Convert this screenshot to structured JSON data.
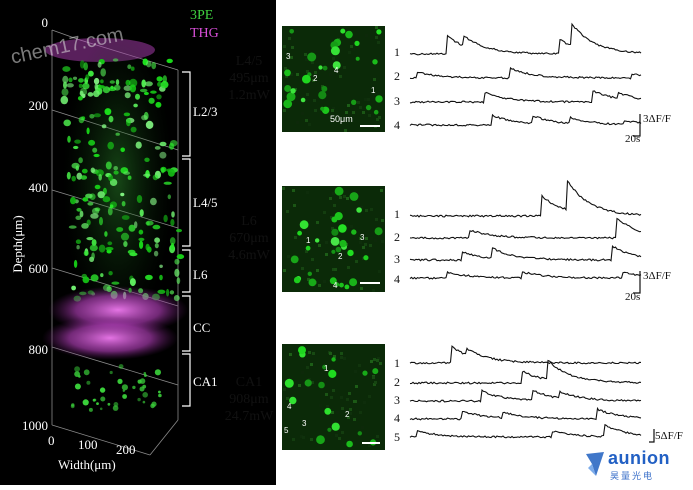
{
  "volume": {
    "legend": [
      {
        "label": "3PE",
        "color": "#3fd23f"
      },
      {
        "label": "THG",
        "color": "#d94fd9"
      }
    ],
    "depth_ticks": [
      "0",
      "200",
      "400",
      "600",
      "800",
      "1000"
    ],
    "width_ticks": [
      "0",
      "100",
      "200"
    ],
    "ylabel": "Depth(μm)",
    "xlabel": "Width(μm)",
    "layers": [
      "L2/3",
      "L4/5",
      "L6",
      "CC",
      "CA1"
    ]
  },
  "rows": [
    {
      "layer": "L4/5",
      "depth": "495μm",
      "power": "1.2mW",
      "scalebar": "50μm",
      "cells": [
        "1",
        "2",
        "3",
        "4"
      ],
      "traces": [
        "1",
        "2",
        "3",
        "4"
      ],
      "amp": "3ΔF/F",
      "time": "20s"
    },
    {
      "layer": "L6",
      "depth": "670μm",
      "power": "4.6mW",
      "cells": [
        "1",
        "2",
        "3",
        "4"
      ],
      "traces": [
        "1",
        "2",
        "3",
        "4"
      ],
      "amp": "3ΔF/F",
      "time": "20s"
    },
    {
      "layer": "CA1",
      "depth": "908μm",
      "power": "24.7mW",
      "cells": [
        "1",
        "2",
        "3",
        "4",
        "5"
      ],
      "traces": [
        "1",
        "2",
        "3",
        "4",
        "5"
      ],
      "amp": "5ΔF/F"
    }
  ],
  "watermarks": {
    "top": "chem17.com",
    "logo": "aunion",
    "logo_sub": "昊量光电"
  },
  "colors": {
    "green": "#3fd23f",
    "magenta": "#d94fd9",
    "trace": "#111111"
  }
}
